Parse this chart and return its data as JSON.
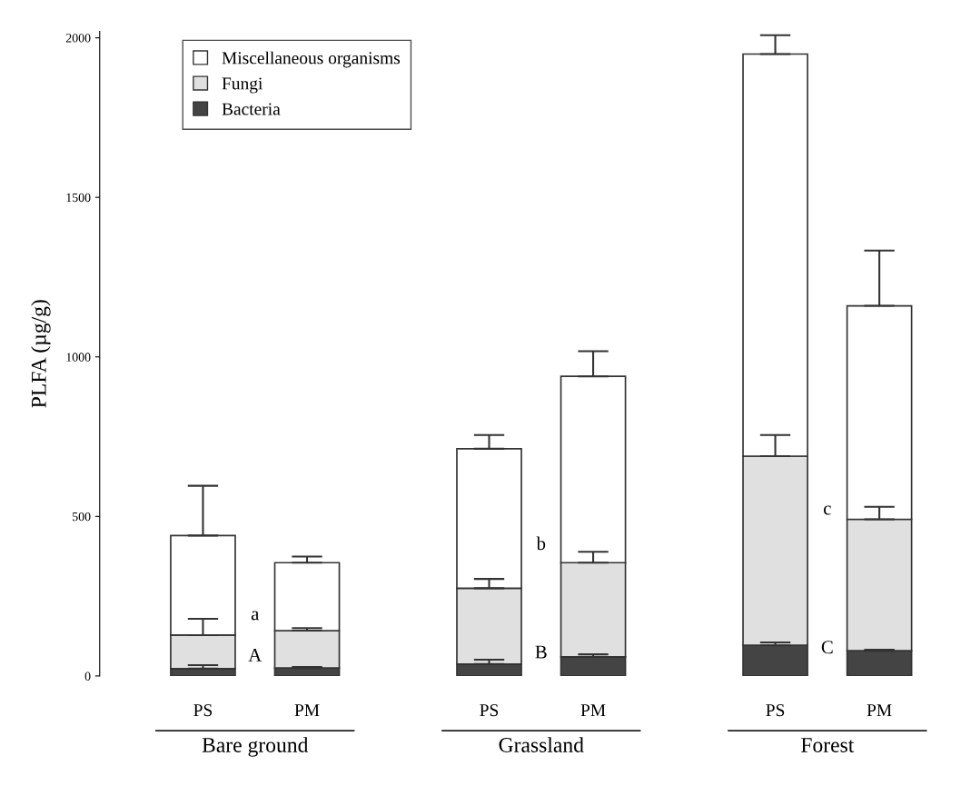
{
  "chart_data": {
    "type": "bar",
    "stacked": true,
    "ylabel": "PLFA (µg/g)",
    "categories": [
      "PS",
      "PM",
      "PS",
      "PM",
      "PS",
      "PM"
    ],
    "series": [
      {
        "name": "Bacteria",
        "color": "#444444",
        "values": [
          23,
          25,
          37,
          60,
          96,
          79
        ],
        "errors": [
          [
            23,
            34
          ],
          [
            25,
            28
          ],
          [
            37,
            51
          ],
          [
            60,
            68
          ],
          [
            96,
            105
          ],
          [
            79,
            82
          ]
        ]
      },
      {
        "name": "Fungi",
        "color": "#e0e0e0",
        "values": [
          105,
          117,
          238,
          295,
          593,
          412
        ],
        "errors": [
          [
            128,
            179
          ],
          [
            142,
            150
          ],
          [
            275,
            304
          ],
          [
            355,
            389
          ],
          [
            689,
            755
          ],
          [
            491,
            530
          ]
        ]
      },
      {
        "name": "Miscellaneous organisms",
        "color": "#ffffff",
        "values": [
          312,
          213,
          437,
          584,
          1260,
          669
        ],
        "errors": [
          [
            440,
            596
          ],
          [
            355,
            374
          ],
          [
            712,
            755
          ],
          [
            939,
            1018
          ],
          [
            1949,
            2008
          ],
          [
            1160,
            1333
          ]
        ]
      }
    ],
    "ylim": [
      0,
      2020
    ],
    "yticks": [
      0,
      500,
      1000,
      1500,
      2000
    ],
    "annotations": [
      "Bare ground",
      "Grassland",
      "Forest",
      "a",
      "A",
      "b",
      "B",
      "c",
      "C"
    ],
    "legend": "top left",
    "grid": false
  }
}
